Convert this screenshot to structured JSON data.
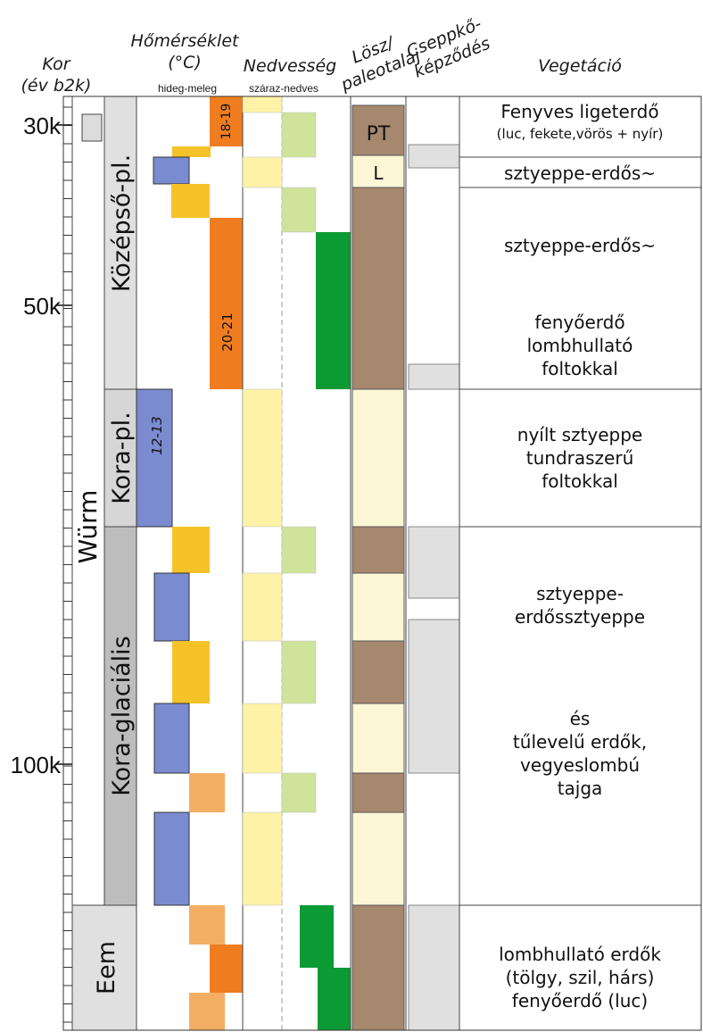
{
  "headers": {
    "kor": [
      "Kor",
      "(év b2k)"
    ],
    "homerseklet": [
      "Hőmérséklet",
      "(°C)"
    ],
    "homerseklet_sub": "hideg-meleg",
    "nedvesseg": "Nedvesség",
    "nedvesseg_sub": "száraz-nedves",
    "losz": [
      "Lösz/",
      "paleotalaj"
    ],
    "cseppko": [
      "Cseppkő-",
      "képződés"
    ],
    "vegetacio": "Vegetáció"
  },
  "age_ticks": [
    "30k",
    "50k",
    "100k"
  ],
  "stages": {
    "wurm": "Würm",
    "kozepso": "Középső-pl.",
    "kora_pl": "Kora-pl.",
    "kora_glacialis": "Kora-glaciális",
    "eem": "Eem"
  },
  "temp_labels": {
    "top": "18-19",
    "mid": "20-21",
    "kora": "12-13"
  },
  "loess_labels": {
    "pt": "PT",
    "l": "L"
  },
  "vegetation": {
    "v1": [
      "Fenyves ligeterdő",
      "(luc, fekete,vörös + nyír)"
    ],
    "v2": [
      "sztyeppe-erdős~"
    ],
    "v3": [
      "sztyeppe-erdős~"
    ],
    "v4": [
      "fenyőerdő",
      "lombhullató",
      "foltokkal"
    ],
    "v5": [
      "nyílt sztyeppe",
      "tundraszerű",
      "foltokkal"
    ],
    "v6": [
      "sztyeppe-",
      "erdőssztyeppe"
    ],
    "v7": [
      "és",
      "tűlevelű erdők,",
      "vegyeslombú",
      "tajga"
    ],
    "v8": [
      "lombhullató erdők",
      "(tölgy, szil, hárs)",
      "fenyőerdő (luc)"
    ]
  },
  "colors": {
    "cold_blue": "#7b8bd0",
    "warm_yellow": "#f5c22a",
    "warm_orange": "#ef7d1f",
    "light_orange": "#f4ae64",
    "dry_yellow": "#fdf2a6",
    "humid_green": "#cfe49a",
    "dark_green": "#0b9a34",
    "loess": "#fdf7d6",
    "paleosol": "#a6886e",
    "speleo_gray": "#e0e0e0"
  }
}
